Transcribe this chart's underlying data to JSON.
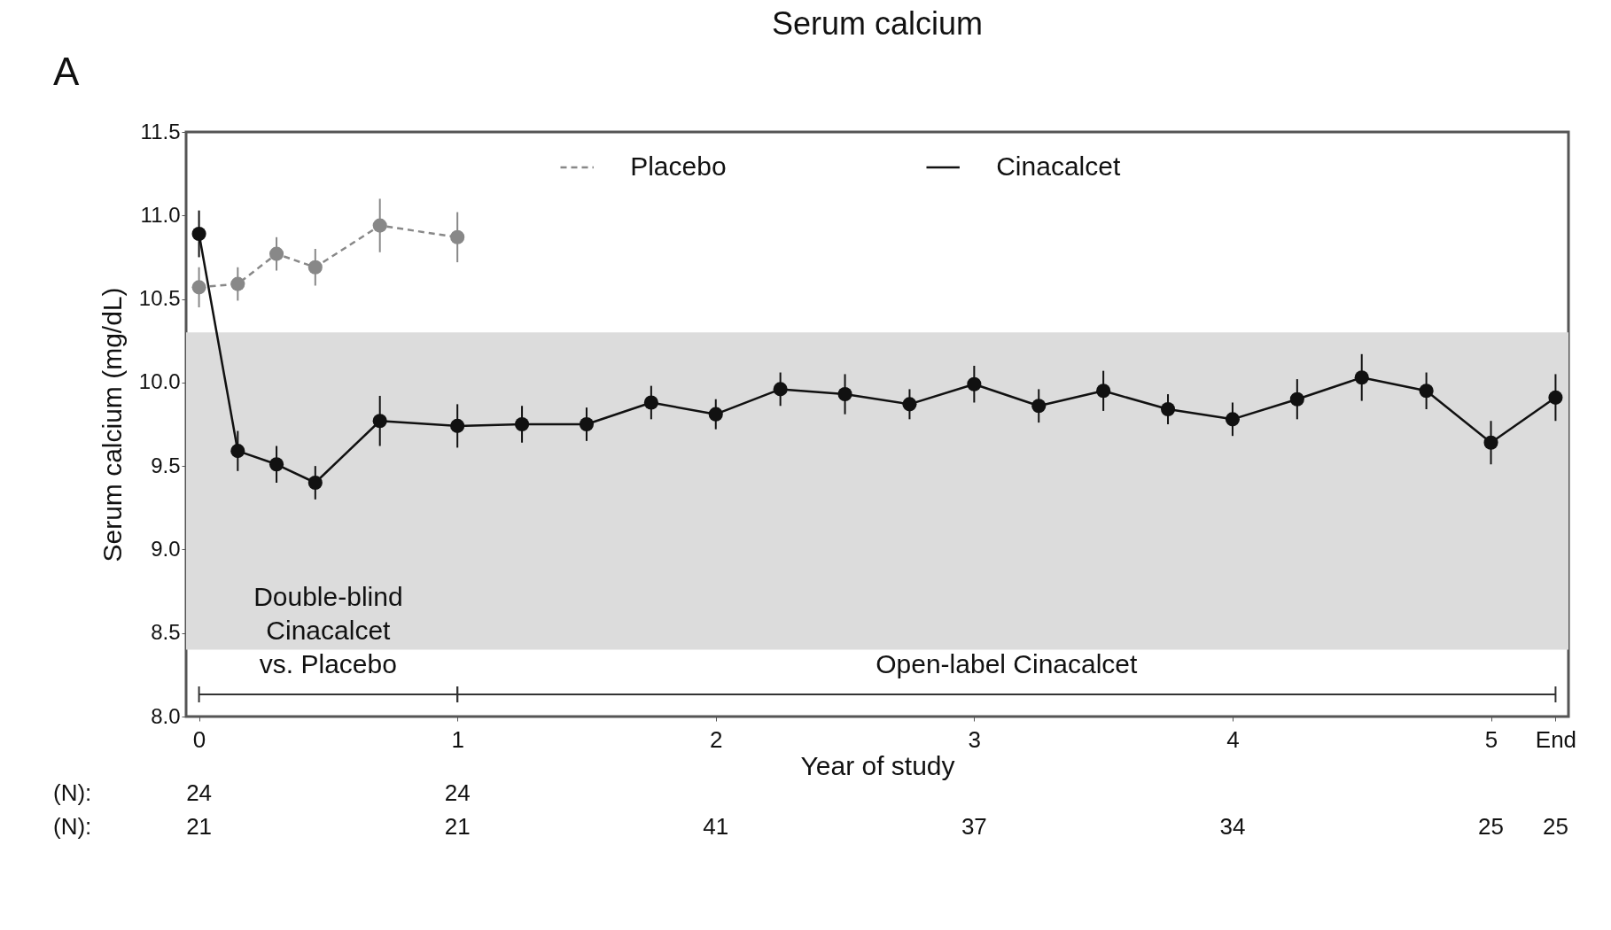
{
  "chart_data": {
    "type": "line",
    "title": "Serum calcium",
    "xlabel": "Year of study",
    "ylabel": "Serum calcium (mg/dL)",
    "xlim": [
      -0.05,
      5.3
    ],
    "xticks": [
      0,
      1,
      2,
      3,
      4,
      5,
      {
        "value": 5.25,
        "label": "End"
      }
    ],
    "ylim": [
      8.0,
      11.5
    ],
    "yticks": [
      {
        "value": 8,
        "label": "8.0"
      },
      8.5,
      {
        "value": 9,
        "label": "9.0"
      },
      9.5,
      {
        "value": 10,
        "label": "10.0"
      },
      10.5,
      {
        "value": 11,
        "label": "11.0"
      },
      11.5
    ],
    "grid": false,
    "legend": "top",
    "marker": "circle",
    "series": [
      {
        "name": "Placebo",
        "color": "#888888",
        "line_style": "dashed",
        "x": [
          0,
          0.15,
          0.3,
          0.45,
          0.7,
          1
        ],
        "values": [
          10.57,
          10.59,
          10.77,
          10.69,
          10.94,
          10.87
        ],
        "errors": [
          0.12,
          0.1,
          0.1,
          0.11,
          0.16,
          0.15
        ]
      },
      {
        "name": "Cinacalcet",
        "color": "#111111",
        "line_style": "solid",
        "x": [
          0,
          0.15,
          0.3,
          0.45,
          0.7,
          1,
          1.25,
          1.5,
          1.75,
          2,
          2.25,
          2.5,
          2.75,
          3,
          3.25,
          3.5,
          3.75,
          4,
          4.25,
          4.5,
          4.75,
          5,
          5.25
        ],
        "values": [
          10.89,
          9.59,
          9.51,
          9.4,
          9.77,
          9.74,
          9.75,
          9.75,
          9.88,
          9.81,
          9.96,
          9.93,
          9.87,
          9.99,
          9.86,
          9.95,
          9.84,
          9.78,
          9.9,
          10.03,
          9.95,
          9.64,
          9.91
        ],
        "errors": [
          0.14,
          0.12,
          0.11,
          0.1,
          0.15,
          0.13,
          0.11,
          0.1,
          0.1,
          0.09,
          0.1,
          0.12,
          0.09,
          0.11,
          0.1,
          0.12,
          0.09,
          0.1,
          0.12,
          0.14,
          0.11,
          0.13,
          0.14
        ]
      }
    ],
    "bands": [
      {
        "axis": "y",
        "from": 8.4,
        "to": 10.3,
        "color": "#dcdcdc"
      }
    ],
    "annotations": [
      "A",
      "Double-blind Cinacalcet vs. Placebo",
      "Open-label Cinacalcet",
      "(N):",
      "24",
      "24",
      "(N):",
      "21",
      "21",
      "41",
      "37",
      "34",
      "25",
      "25"
    ]
  }
}
